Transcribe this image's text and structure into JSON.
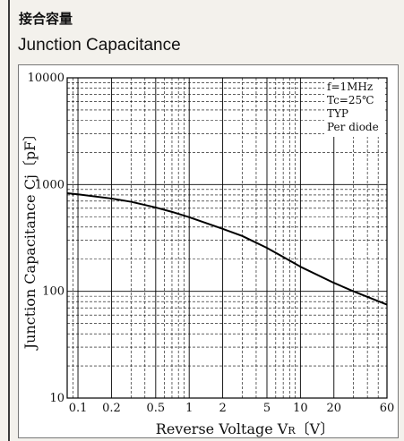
{
  "titles": {
    "jp": "接合容量",
    "en": "Junction Capacitance"
  },
  "chart_data": {
    "type": "line",
    "xlabel": "Reverse Voltage  V",
    "xlabel_sub": "R",
    "xlabel_unit": "〔V〕",
    "ylabel": "Junction Capacitance  Cj〔pF〕",
    "x_scale": "log",
    "y_scale": "log",
    "xlim": [
      0.08,
      60
    ],
    "ylim": [
      10,
      10000
    ],
    "x_ticks": [
      {
        "v": 0.1,
        "label": "0.1"
      },
      {
        "v": 0.2,
        "label": "0.2"
      },
      {
        "v": 0.5,
        "label": "0.5"
      },
      {
        "v": 1,
        "label": "1"
      },
      {
        "v": 2,
        "label": "2"
      },
      {
        "v": 5,
        "label": "5"
      },
      {
        "v": 10,
        "label": "10"
      },
      {
        "v": 20,
        "label": "20"
      },
      {
        "v": 60,
        "label": "60"
      }
    ],
    "y_ticks": [
      {
        "v": 10,
        "label": "10"
      },
      {
        "v": 100,
        "label": "100"
      },
      {
        "v": 1000,
        "label": "1000"
      },
      {
        "v": 10000,
        "label": "10000"
      }
    ],
    "annotations": [
      "f=1MHz",
      "Tc=25℃",
      "TYP",
      "Per diode"
    ],
    "grid": true,
    "series": [
      {
        "x": [
          0.08,
          0.1,
          0.2,
          0.3,
          0.5,
          0.7,
          1,
          2,
          3,
          5,
          7,
          10,
          20,
          30,
          60
        ],
        "y": [
          830,
          810,
          740,
          690,
          610,
          555,
          495,
          385,
          330,
          255,
          210,
          170,
          120,
          100,
          75
        ]
      }
    ]
  }
}
